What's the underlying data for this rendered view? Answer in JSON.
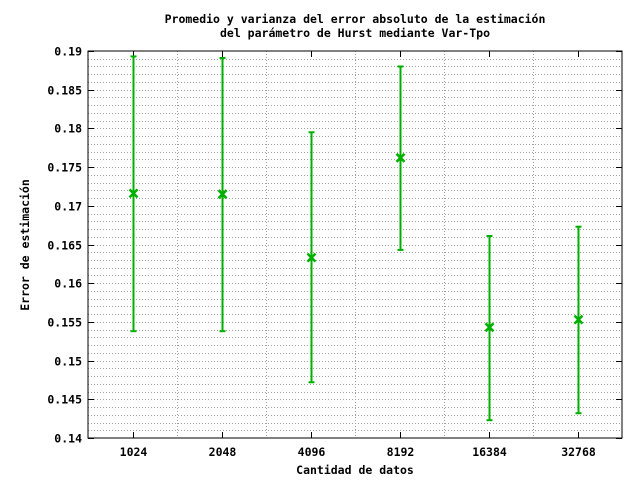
{
  "chart_data": {
    "type": "errorbar",
    "title": [
      "Promedio y varianza del error absoluto de la estimación",
      "del parámetro de Hurst mediante Var-Tpo"
    ],
    "xlabel": "Cantidad de datos",
    "ylabel": "Error de estimación",
    "categories": [
      "1024",
      "2048",
      "4096",
      "8192",
      "16384",
      "32768"
    ],
    "series": [
      {
        "mean": [
          0.1716,
          0.1715,
          0.1633,
          0.1762,
          0.1543,
          0.1553
        ],
        "lower": [
          0.1538,
          0.1538,
          0.1472,
          0.1643,
          0.1423,
          0.1432
        ],
        "upper": [
          0.1893,
          0.1891,
          0.1795,
          0.188,
          0.1661,
          0.1673
        ],
        "color": "#00b000"
      }
    ],
    "ylim": [
      0.14,
      0.19
    ],
    "yticks": [
      "0.14",
      "0.145",
      "0.15",
      "0.155",
      "0.16",
      "0.165",
      "0.17",
      "0.175",
      "0.18",
      "0.185",
      "0.19"
    ],
    "ytick_values": [
      0.14,
      0.145,
      0.15,
      0.155,
      0.16,
      0.165,
      0.17,
      0.175,
      0.18,
      0.185,
      0.19
    ],
    "minor_grid_step": 0.001,
    "grid": true
  }
}
